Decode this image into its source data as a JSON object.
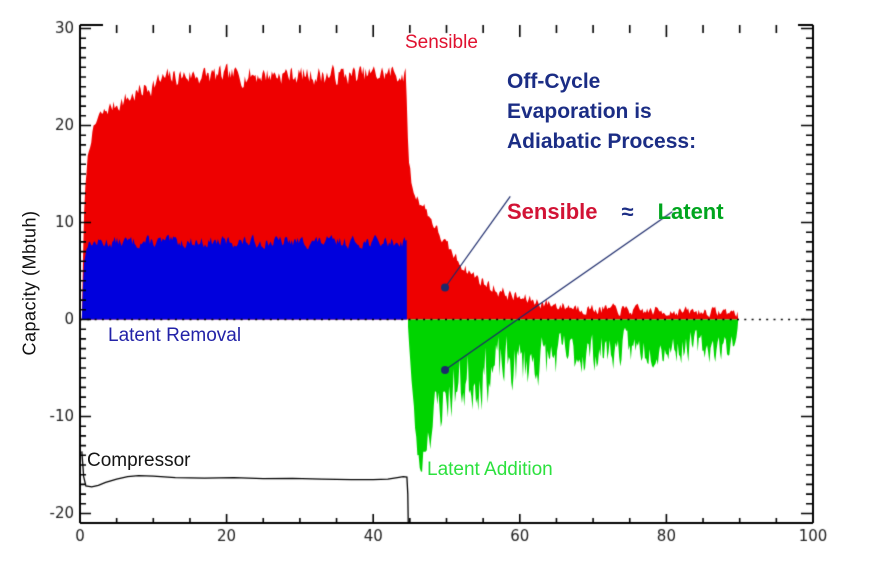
{
  "chart_data": {
    "type": "area",
    "title": "",
    "xlabel": "",
    "ylabel": "Capacity (Mbtuh)",
    "xlim": [
      0,
      100
    ],
    "ylim": [
      -21.0,
      30.4
    ],
    "grid": false,
    "zero_line": {
      "style": "dotted",
      "color": "#000000"
    },
    "x_major_ticks": [
      0,
      20,
      40,
      60,
      80,
      100
    ],
    "x_tick_labels": [
      "0",
      "20",
      "40",
      "60",
      "80",
      "100"
    ],
    "x_minor_step": 5,
    "y_major_ticks": [
      -20,
      -10,
      0,
      10,
      20,
      30
    ],
    "y_tick_labels": [
      "-20",
      "-10",
      "0",
      "10",
      "20",
      "30"
    ],
    "y_minor_step": 1,
    "axis_color": "#000000",
    "tick_label_color": "#222222",
    "series": [
      {
        "name": "Sensible",
        "kind": "area",
        "color": "#ee0000",
        "x_start": 0.25,
        "x_end": 89.8,
        "trend": [
          [
            0.25,
            0
          ],
          [
            0.4,
            6
          ],
          [
            0.6,
            12
          ],
          [
            1,
            16.5
          ],
          [
            1.6,
            19
          ],
          [
            2.5,
            20.8
          ],
          [
            4,
            21.8
          ],
          [
            6,
            22.6
          ],
          [
            8,
            23.4
          ],
          [
            10,
            24.3
          ],
          [
            12,
            24.9
          ],
          [
            15,
            25.2
          ],
          [
            20,
            25.1
          ],
          [
            26,
            25.3
          ],
          [
            32,
            25.2
          ],
          [
            38,
            25.2
          ],
          [
            43,
            25.4
          ],
          [
            44.4,
            25.2
          ],
          [
            44.9,
            16
          ],
          [
            45.4,
            13.2
          ],
          [
            46,
            12.6
          ],
          [
            47,
            11.6
          ],
          [
            48,
            10.2
          ],
          [
            49,
            8.8
          ],
          [
            50,
            7.6
          ],
          [
            51,
            6.6
          ],
          [
            52,
            5.7
          ],
          [
            53,
            5.0
          ],
          [
            54,
            4.4
          ],
          [
            55,
            3.9
          ],
          [
            56,
            3.4
          ],
          [
            57,
            3.0
          ],
          [
            58,
            2.7
          ],
          [
            60,
            2.2
          ],
          [
            62,
            1.9
          ],
          [
            64,
            1.6
          ],
          [
            66,
            1.4
          ],
          [
            68,
            1.25
          ],
          [
            70,
            1.1
          ],
          [
            73,
            1.0
          ],
          [
            76,
            0.9
          ],
          [
            80,
            0.85
          ],
          [
            84,
            0.8
          ],
          [
            88,
            0.8
          ],
          [
            89.8,
            0.7
          ]
        ],
        "noise_amp": [
          [
            0.25,
            0.2
          ],
          [
            2,
            0.5
          ],
          [
            6,
            0.8
          ],
          [
            10,
            0.9
          ],
          [
            44.4,
            0.9
          ],
          [
            45.5,
            0.5
          ],
          [
            52,
            0.5
          ],
          [
            56,
            0.6
          ],
          [
            62,
            0.55
          ],
          [
            70,
            0.5
          ],
          [
            89.8,
            0.45
          ]
        ],
        "clamp_min": 0.05,
        "seed": 7
      },
      {
        "name": "Latent Removal",
        "kind": "area",
        "color": "#0000dd",
        "x_start": 0.25,
        "x_end": 44.6,
        "trend": [
          [
            0.25,
            0
          ],
          [
            0.5,
            5.5
          ],
          [
            0.9,
            7.7
          ],
          [
            1.5,
            7.9
          ],
          [
            5,
            8
          ],
          [
            15,
            8
          ],
          [
            25,
            8
          ],
          [
            35,
            8
          ],
          [
            44,
            8
          ],
          [
            44.6,
            8.5
          ]
        ],
        "noise_amp": [
          [
            0.25,
            0.15
          ],
          [
            1,
            0.4
          ],
          [
            3,
            0.55
          ],
          [
            44.6,
            0.55
          ]
        ],
        "clamp_min": 0.05,
        "seed": 13
      },
      {
        "name": "Latent Addition",
        "kind": "area",
        "color": "#00d400",
        "x_start": 44.75,
        "x_end": 89.8,
        "trend": [
          [
            44.75,
            -0.5
          ],
          [
            45.2,
            -6
          ],
          [
            45.7,
            -11
          ],
          [
            46.1,
            -14.2
          ],
          [
            46.5,
            -15.6
          ],
          [
            47,
            -13
          ],
          [
            47.5,
            -11.5
          ],
          [
            48,
            -10.5
          ],
          [
            49,
            -9
          ],
          [
            50,
            -8
          ],
          [
            51,
            -7.3
          ],
          [
            52,
            -6.8
          ],
          [
            53,
            -6.3
          ],
          [
            54,
            -6
          ],
          [
            55,
            -5.7
          ],
          [
            56,
            -5.4
          ],
          [
            58,
            -5
          ],
          [
            60,
            -4.6
          ],
          [
            62,
            -4.3
          ],
          [
            64,
            -4
          ],
          [
            66,
            -3.8
          ],
          [
            68,
            -3.6
          ],
          [
            70,
            -3.4
          ],
          [
            73,
            -3.2
          ],
          [
            76,
            -3.0
          ],
          [
            80,
            -2.9
          ],
          [
            84,
            -2.8
          ],
          [
            88,
            -3.0
          ],
          [
            89.8,
            -1.5
          ]
        ],
        "noise_amp": [
          [
            44.75,
            0.5
          ],
          [
            46.5,
            1.0
          ],
          [
            48,
            2.5
          ],
          [
            52,
            3.0
          ],
          [
            58,
            2.8
          ],
          [
            64,
            2.2
          ],
          [
            70,
            1.8
          ],
          [
            78,
            1.5
          ],
          [
            86,
            1.4
          ],
          [
            89.8,
            1.2
          ]
        ],
        "clamp_max": -0.05,
        "clamp_min": -20.5,
        "seed": 23
      },
      {
        "name": "Compressor",
        "kind": "line",
        "color": "#000000",
        "points": [
          [
            0.25,
            -13.6
          ],
          [
            0.5,
            -16.2
          ],
          [
            0.8,
            -17.15
          ],
          [
            1.6,
            -17.25
          ],
          [
            2.5,
            -17.1
          ],
          [
            3.5,
            -16.8
          ],
          [
            5,
            -16.45
          ],
          [
            6.5,
            -16.2
          ],
          [
            8,
            -16.1
          ],
          [
            10,
            -16.15
          ],
          [
            13,
            -16.3
          ],
          [
            17,
            -16.35
          ],
          [
            21,
            -16.3
          ],
          [
            25,
            -16.4
          ],
          [
            29,
            -16.38
          ],
          [
            33,
            -16.45
          ],
          [
            37,
            -16.5
          ],
          [
            40,
            -16.5
          ],
          [
            42,
            -16.45
          ],
          [
            43.3,
            -16.3
          ],
          [
            44.1,
            -16.2
          ],
          [
            44.6,
            -16.25
          ],
          [
            44.72,
            -18
          ],
          [
            44.78,
            -21.0
          ]
        ]
      }
    ],
    "pointers": [
      {
        "from_xy": [
          58.7,
          12.7
        ],
        "to_xy": [
          49.8,
          3.3
        ],
        "color": "#1c2a6b",
        "dot_radius": 4
      },
      {
        "from_xy": [
          80.8,
          11.1
        ],
        "to_xy": [
          49.8,
          -5.2
        ],
        "color": "#1c2a6b",
        "dot_radius": 4
      }
    ]
  },
  "labels": {
    "y_axis_title": "Capacity (Mbtuh)",
    "sensible_peak": "Sensible",
    "latent_removal": "Latent Removal",
    "compressor": "Compressor",
    "latent_addition": "Latent Addition",
    "offcycle_note": "Off-Cycle\nEvaporation is\nAdiabatic Process:",
    "equation": {
      "sensible": "Sensible",
      "approx": "≈",
      "latent": "Latent"
    }
  },
  "colors": {
    "sensible_fill": "#ee0000",
    "latent_removal_fill": "#0000dd",
    "latent_addition_fill": "#00d400",
    "compressor_line": "#000000",
    "note_navy": "#1b2d85",
    "equation_red": "#d21335",
    "equation_green": "#00a51e",
    "pointer_navy": "#1c2a6b"
  }
}
